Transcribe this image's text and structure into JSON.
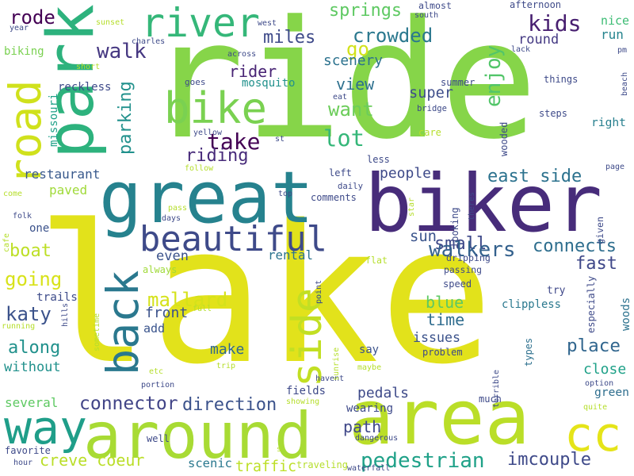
{
  "words": [
    {
      "text": "lake",
      "color": "#e2e21b"
    },
    {
      "text": "ride",
      "color": "#86d549"
    },
    {
      "text": "biker",
      "color": "#472c7a"
    },
    {
      "text": "great",
      "color": "#26828e"
    },
    {
      "text": "area",
      "color": "#bade28"
    },
    {
      "text": "around",
      "color": "#a8db34"
    },
    {
      "text": "park",
      "color": "#2db27d"
    },
    {
      "text": "bike",
      "color": "#7ad151"
    },
    {
      "text": "river",
      "color": "#35b779"
    },
    {
      "text": "way",
      "color": "#1f9e89"
    },
    {
      "text": "back",
      "color": "#2a788e"
    },
    {
      "text": "side",
      "color": "#c2df23"
    },
    {
      "text": "road",
      "color": "#d0e11c"
    },
    {
      "text": "cc",
      "color": "#e5e419"
    },
    {
      "text": "beautiful",
      "color": "#3e4a89"
    },
    {
      "text": "kids",
      "color": "#481f70"
    },
    {
      "text": "place",
      "color": "#31668e"
    },
    {
      "text": "lot",
      "color": "#35b779"
    },
    {
      "text": "take",
      "color": "#440154"
    },
    {
      "text": "pedestrian",
      "color": "#1fa188"
    },
    {
      "text": "crowded",
      "color": "#2a788e"
    },
    {
      "text": "miles",
      "color": "#3e4a89"
    },
    {
      "text": "walk",
      "color": "#453781"
    },
    {
      "text": "rode",
      "color": "#440154"
    },
    {
      "text": "springs",
      "color": "#5ec962"
    },
    {
      "text": "nice",
      "color": "#3dbc74"
    },
    {
      "text": "right",
      "color": "#277f8e"
    },
    {
      "text": "connects",
      "color": "#2e6e8e"
    },
    {
      "text": "going",
      "color": "#d8e219"
    },
    {
      "text": "mallard",
      "color": "#d5e21a"
    },
    {
      "text": "connector",
      "color": "#414487"
    },
    {
      "text": "direction",
      "color": "#3b528b"
    },
    {
      "text": "east side",
      "color": "#2c728e"
    },
    {
      "text": "want",
      "color": "#6ccd5a"
    },
    {
      "text": "riding",
      "color": "#472a7a"
    },
    {
      "text": "rider",
      "color": "#482374"
    },
    {
      "text": "view",
      "color": "#2d708e"
    },
    {
      "text": "enjoy",
      "color": "#52c569"
    },
    {
      "text": "go",
      "color": "#d2e21b"
    },
    {
      "text": "parking",
      "color": "#21918c"
    },
    {
      "text": "boat",
      "color": "#bddf26"
    },
    {
      "text": "katy",
      "color": "#3b528b"
    },
    {
      "text": "trails",
      "color": "#3e4c8a"
    },
    {
      "text": "along",
      "color": "#21918c"
    },
    {
      "text": "fast",
      "color": "#3f4889"
    },
    {
      "text": "green",
      "color": "#2e6e8e"
    },
    {
      "text": "small",
      "color": "#3e4989"
    },
    {
      "text": "walkers",
      "color": "#34618d"
    },
    {
      "text": "time",
      "color": "#2f6c8e"
    },
    {
      "text": "blue",
      "color": "#5ec962"
    },
    {
      "text": "rental",
      "color": "#2c738e"
    },
    {
      "text": "sun",
      "color": "#3a548c"
    },
    {
      "text": "people",
      "color": "#3e4a89"
    },
    {
      "text": "path",
      "color": "#3f4788"
    },
    {
      "text": "imcouple",
      "color": "#3e4989"
    },
    {
      "text": "creve coeur",
      "color": "#bade28"
    },
    {
      "text": "traffic",
      "color": "#bddf26"
    },
    {
      "text": "scenic",
      "color": "#2a788e"
    },
    {
      "text": "pedals",
      "color": "#3e4a89"
    },
    {
      "text": "even",
      "color": "#3b528b"
    },
    {
      "text": "front",
      "color": "#3b528b"
    },
    {
      "text": "make",
      "color": "#31688e"
    },
    {
      "text": "issues",
      "color": "#3b528b"
    },
    {
      "text": "close",
      "color": "#1fa188"
    },
    {
      "text": "woods",
      "color": "#2c728e"
    },
    {
      "text": "several",
      "color": "#5ec962"
    },
    {
      "text": "without",
      "color": "#21918c"
    },
    {
      "text": "super",
      "color": "#3d4d8a"
    },
    {
      "text": "scenery",
      "color": "#2c728e"
    },
    {
      "text": "round",
      "color": "#443983"
    },
    {
      "text": "run",
      "color": "#25848e"
    },
    {
      "text": "paved",
      "color": "#a0da39"
    },
    {
      "text": "restaurant",
      "color": "#38598c"
    },
    {
      "text": "one",
      "color": "#3b528b"
    },
    {
      "text": "biking",
      "color": "#7ad151"
    },
    {
      "text": "reckless",
      "color": "#3e4a89"
    },
    {
      "text": "missouri",
      "color": "#1fa188"
    },
    {
      "text": "mosquito",
      "color": "#21918c"
    },
    {
      "text": "add",
      "color": "#3a548c"
    },
    {
      "text": "try",
      "color": "#3f4889"
    },
    {
      "text": "clippless",
      "color": "#2a788e"
    },
    {
      "text": "especially",
      "color": "#3e4a89"
    },
    {
      "text": "types",
      "color": "#2d708e"
    },
    {
      "text": "say",
      "color": "#3b528b"
    },
    {
      "text": "problem",
      "color": "#3e4a89"
    },
    {
      "text": "wearing",
      "color": "#3e4a89"
    },
    {
      "text": "fields",
      "color": "#3e4a89"
    },
    {
      "text": "much",
      "color": "#3e4a89"
    },
    {
      "text": "looking",
      "color": "#3e4a89"
    },
    {
      "text": "speed",
      "color": "#3e4a89"
    },
    {
      "text": "dripping",
      "color": "#3e4a89"
    },
    {
      "text": "passing",
      "color": "#3e4a89"
    },
    {
      "text": "comments",
      "color": "#3e4a89"
    },
    {
      "text": "daily",
      "color": "#3e4a89"
    },
    {
      "text": "left",
      "color": "#3e4a89"
    },
    {
      "text": "less",
      "color": "#3e4a89"
    },
    {
      "text": "flat",
      "color": "#b5de2b"
    },
    {
      "text": "always",
      "color": "#a0da39"
    },
    {
      "text": "things",
      "color": "#3e4a89"
    },
    {
      "text": "afternoon",
      "color": "#3e4a89"
    },
    {
      "text": "steps",
      "color": "#3e4a89"
    },
    {
      "text": "wooded",
      "color": "#3e4a89"
    },
    {
      "text": "care",
      "color": "#b5de2b"
    },
    {
      "text": "summer",
      "color": "#3e4a89"
    },
    {
      "text": "bridge",
      "color": "#3e4a89"
    },
    {
      "text": "eat",
      "color": "#3e4a89"
    },
    {
      "text": "goes",
      "color": "#3e4a89"
    },
    {
      "text": "yellow",
      "color": "#3e4a89"
    },
    {
      "text": "st",
      "color": "#3e4a89"
    },
    {
      "text": "follow",
      "color": "#b5de2b"
    },
    {
      "text": "top",
      "color": "#3e4a89"
    },
    {
      "text": "star",
      "color": "#b5de2b"
    },
    {
      "text": "theres",
      "color": "#3e4a89"
    },
    {
      "text": "given",
      "color": "#3e4a89"
    },
    {
      "text": "page",
      "color": "#3e4a89"
    },
    {
      "text": "option",
      "color": "#3e4a89"
    },
    {
      "text": "quite",
      "color": "#b5de2b"
    },
    {
      "text": "terrible",
      "color": "#3e4a89"
    },
    {
      "text": "havent",
      "color": "#3e4a89"
    },
    {
      "text": "showing",
      "color": "#b5de2b"
    },
    {
      "text": "maybe",
      "color": "#b5de2b"
    },
    {
      "text": "sunrise",
      "color": "#b5de2b"
    },
    {
      "text": "point",
      "color": "#3e4a89"
    },
    {
      "text": "trip",
      "color": "#b5de2b"
    },
    {
      "text": "full",
      "color": "#b5de2b"
    },
    {
      "text": "hills",
      "color": "#3e4a89"
    },
    {
      "text": "sometime",
      "color": "#b5de2b"
    },
    {
      "text": "etc",
      "color": "#b5de2b"
    },
    {
      "text": "portion",
      "color": "#3e4a89"
    },
    {
      "text": "well",
      "color": "#3e4a89"
    },
    {
      "text": "dangerous",
      "color": "#3e4a89"
    },
    {
      "text": "s",
      "color": "#b5de2b"
    },
    {
      "text": "traveling",
      "color": "#b5de2b"
    },
    {
      "text": "waterfall",
      "color": "#3e4a89"
    },
    {
      "text": "hour",
      "color": "#3e4a89"
    },
    {
      "text": "favorite",
      "color": "#3e4a89"
    },
    {
      "text": "running",
      "color": "#b5de2b"
    },
    {
      "text": "folk",
      "color": "#3e4a89"
    },
    {
      "text": "cafe",
      "color": "#b5de2b"
    },
    {
      "text": "come",
      "color": "#b5de2b"
    },
    {
      "text": "days",
      "color": "#3e4a89"
    },
    {
      "text": "pass",
      "color": "#b5de2b"
    },
    {
      "text": "sunset",
      "color": "#b5de2b"
    },
    {
      "text": "short",
      "color": "#b5de2b"
    },
    {
      "text": "charles",
      "color": "#3e4a89"
    },
    {
      "text": "across",
      "color": "#3e4a89"
    },
    {
      "text": "west",
      "color": "#3e4a89"
    },
    {
      "text": "south",
      "color": "#3e4a89"
    },
    {
      "text": "almost",
      "color": "#3e4a89"
    },
    {
      "text": "year",
      "color": "#3e4a89"
    },
    {
      "text": "pm",
      "color": "#3e4a89"
    },
    {
      "text": "lack",
      "color": "#3e4a89"
    },
    {
      "text": "beach",
      "color": "#3e4a89"
    }
  ]
}
